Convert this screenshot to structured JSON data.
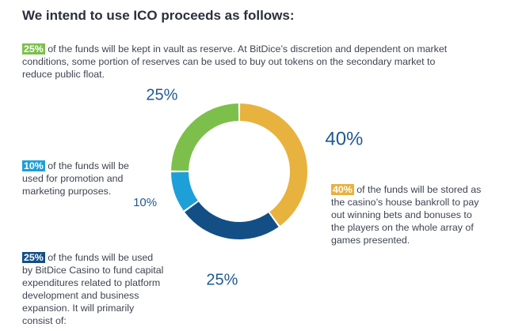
{
  "title": "We intend to use ICO proceeds as follows:",
  "blocks": {
    "top": {
      "badge": "25%",
      "text": " of the funds will be kept in vault as reserve. At BitDice’s discretion and dependent on market conditions, some portion of reserves can  be used to buy out tokens on the secondary market to reduce public float."
    },
    "left": {
      "badge": "10%",
      "text": " of the funds will be used for promotion and marketing purposes."
    },
    "right": {
      "badge": "40%",
      "text": " of the funds will be stored as the casino’s house bankroll to pay out winning bets and bonuses to the players on the whole array of games presented."
    },
    "bottom": {
      "badge": "25%",
      "text": " of the funds will be used by BitDice Casino to fund capital expenditures related to platform development and business expansion. It will primarily consist of:"
    }
  },
  "chart_data": {
    "type": "pie",
    "categories": [
      "Reserve",
      "House bankroll",
      "Platform development",
      "Promotion and marketing"
    ],
    "values": [
      25,
      40,
      25,
      10
    ],
    "slice_labels": [
      "25%",
      "40%",
      "25%",
      "10%"
    ],
    "colors": [
      "#7cc04b",
      "#e8b23e",
      "#134f85",
      "#1f9fd8"
    ],
    "style": "donut"
  }
}
